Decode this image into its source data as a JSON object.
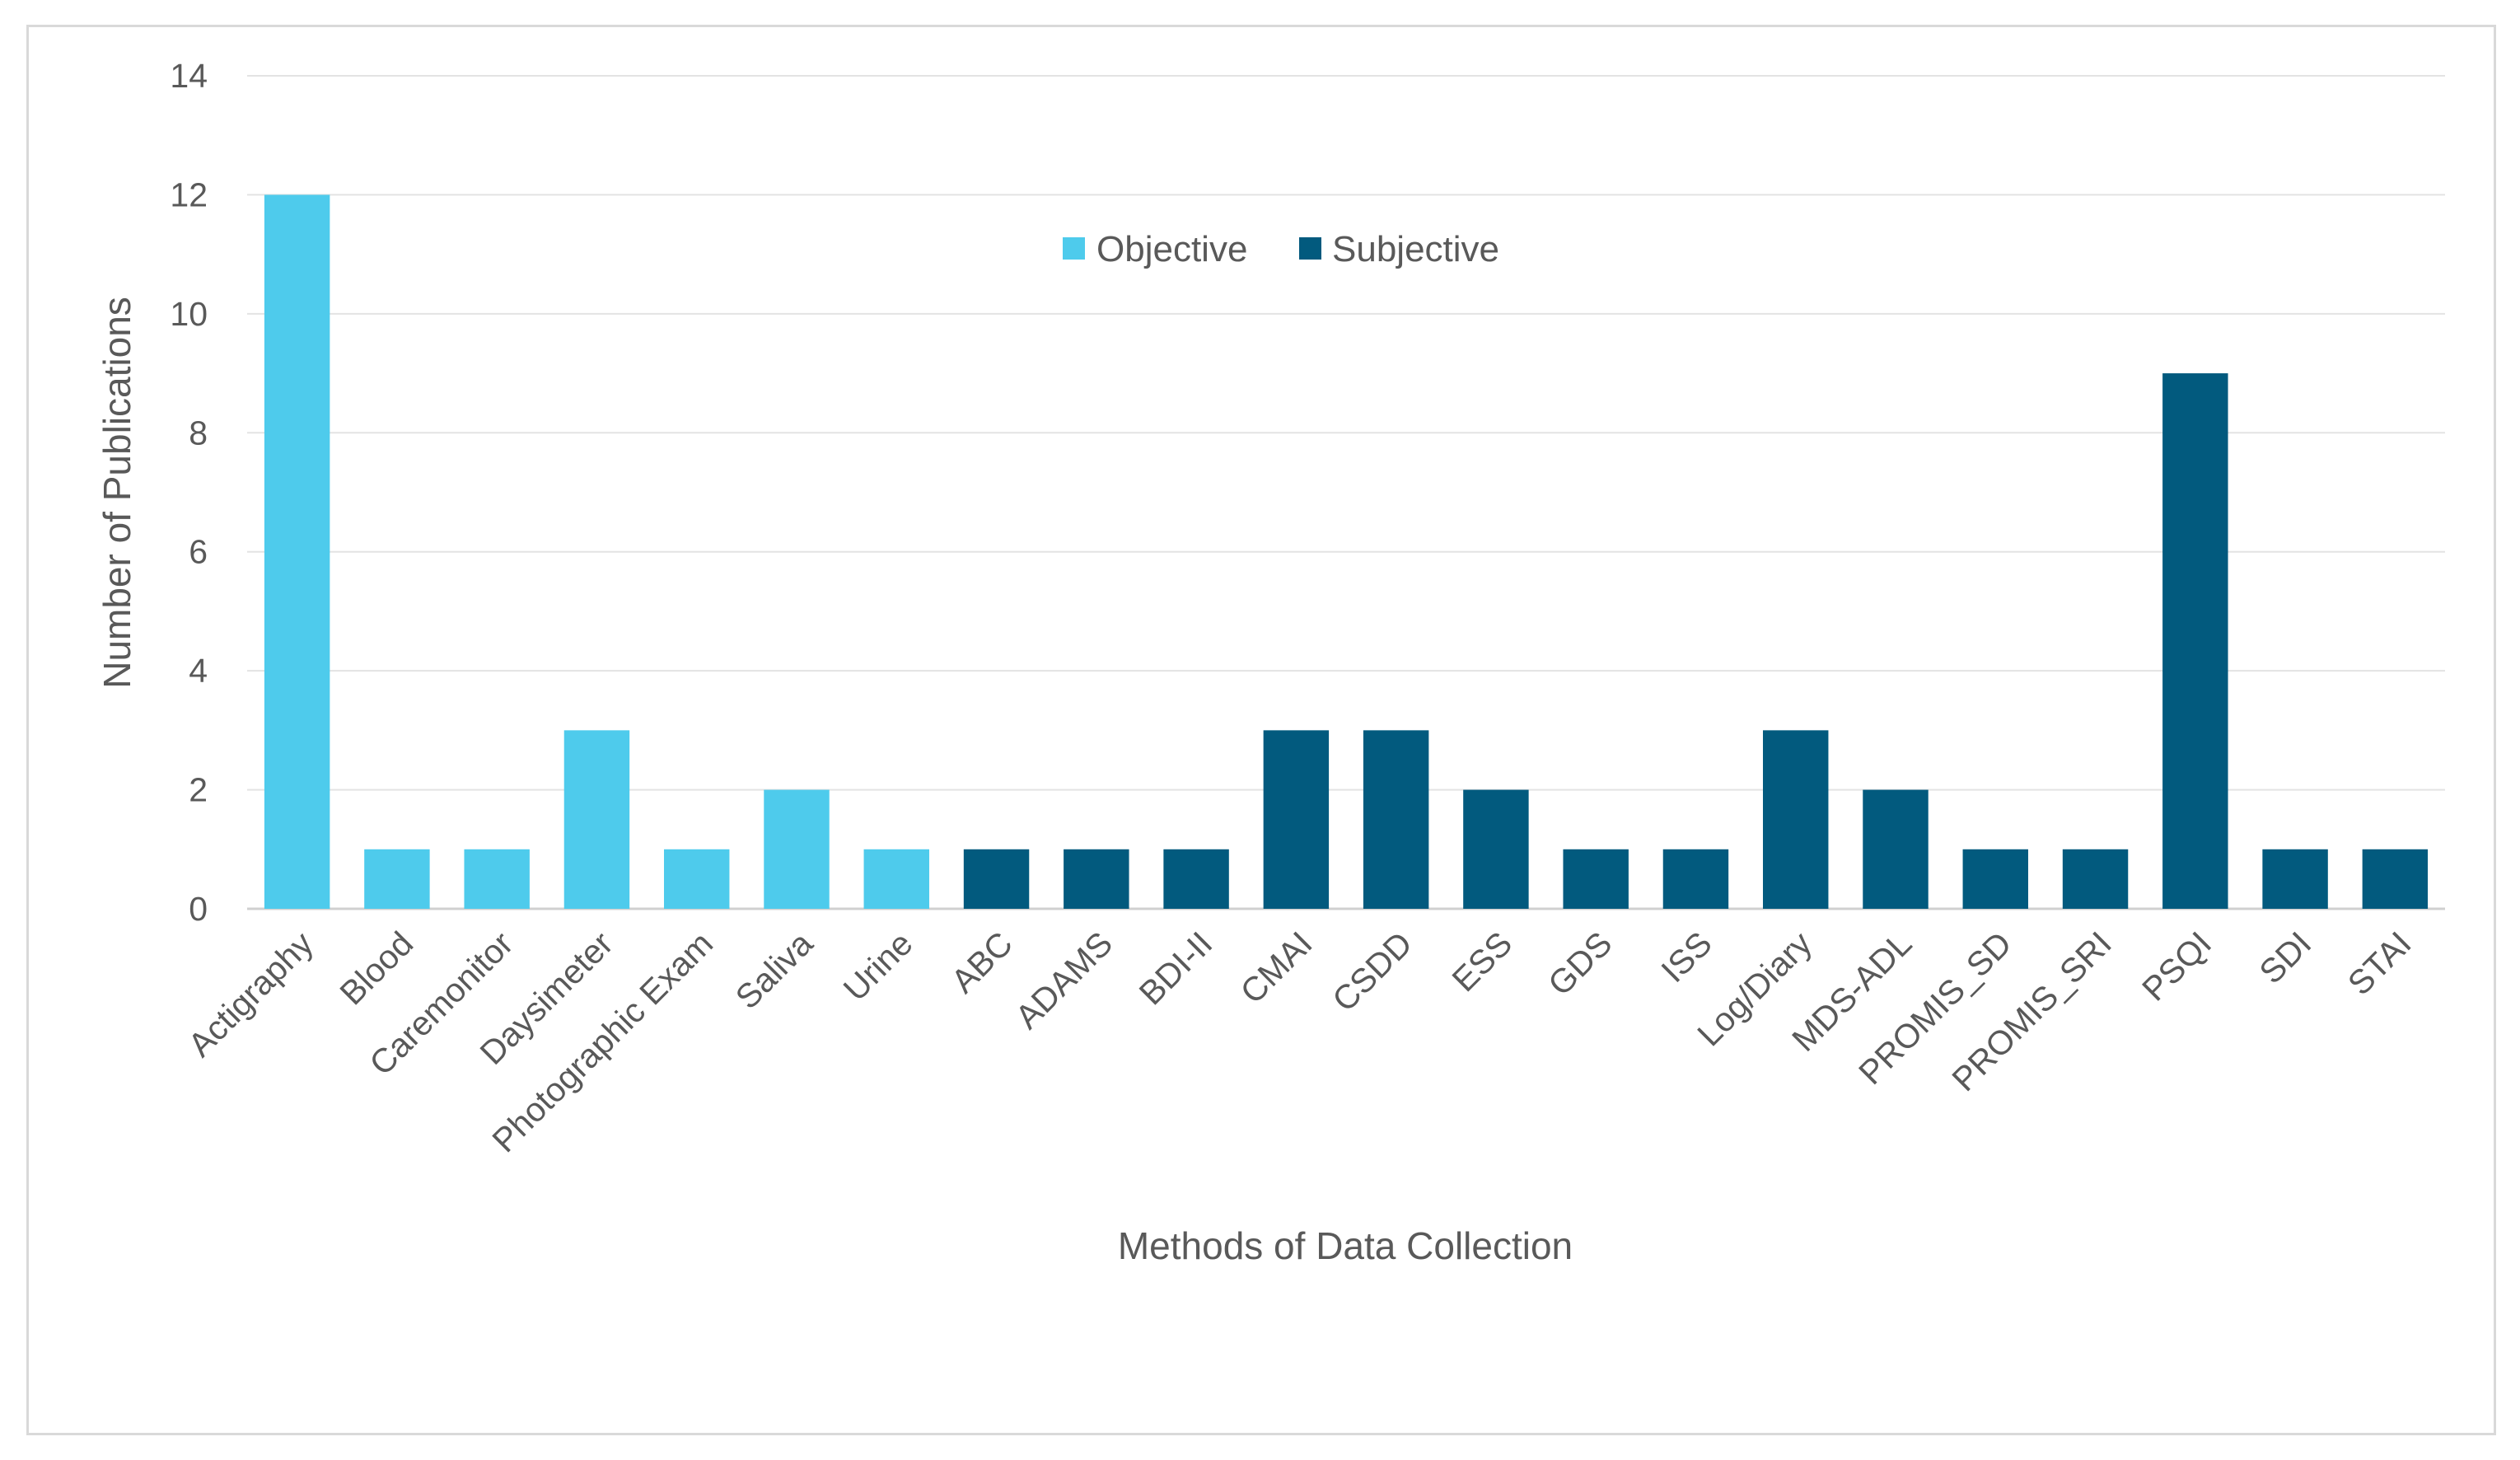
{
  "chart_data": {
    "type": "bar",
    "title": "",
    "xlabel": "Methods of Data Collection",
    "ylabel": "Number of Publications",
    "ylim": [
      0,
      14
    ],
    "yticks": [
      0,
      2,
      4,
      6,
      8,
      10,
      12,
      14
    ],
    "grid": true,
    "legend_position": "top-center",
    "series": [
      {
        "name": "Objective",
        "color": "#4ecbec"
      },
      {
        "name": "Subjective",
        "color": "#025a7e"
      }
    ],
    "categories": [
      "Actigraphy",
      "Blood",
      "Caremonitor",
      "Daysimeter",
      "Photographic Exam",
      "Saliva",
      "Urine",
      "ABC",
      "ADAMS",
      "BDI-II",
      "CMAI",
      "CSDD",
      "ESS",
      "GDS",
      "ISS",
      "Log/Diary",
      "MDS-ADL",
      "PROMIS_SD",
      "PROMIS_SRI",
      "PSQI",
      "SDI",
      "STAI"
    ],
    "values": [
      12,
      1,
      1,
      3,
      1,
      2,
      1,
      1,
      1,
      1,
      3,
      3,
      2,
      1,
      1,
      3,
      2,
      1,
      1,
      9,
      1,
      1
    ],
    "series_index": [
      0,
      0,
      0,
      0,
      0,
      0,
      0,
      1,
      1,
      1,
      1,
      1,
      1,
      1,
      1,
      1,
      1,
      1,
      1,
      1,
      1,
      1
    ]
  }
}
